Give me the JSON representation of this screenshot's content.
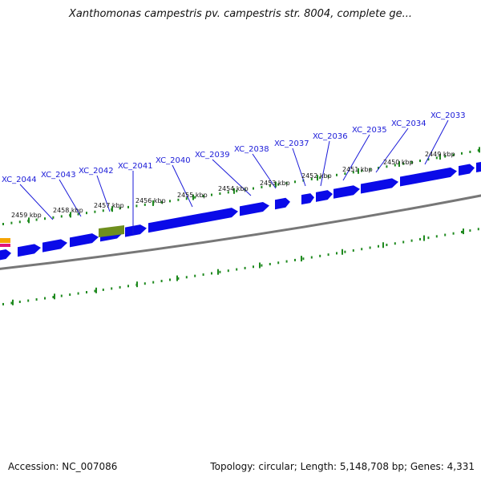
{
  "title": "Xanthomonas campestris pv. campestris str. 8004, complete ge...",
  "footer": {
    "accession": "Accession: NC_007086",
    "summary": "Topology: circular; Length: 5,148,708 bp; Genes: 4,331"
  },
  "colors": {
    "gene": "#0a0ae8",
    "gene_highlight": "#6f8f1e",
    "ticks": "#1f8a1f",
    "backbone": "#777777",
    "label": "#1a1ad8",
    "edge_orange": "#f5a300",
    "edge_pink": "#e0157a"
  },
  "position_labels": [
    "2459 kbp",
    "2458 kbp",
    "2457 kbp",
    "2456 kbp",
    "2455 kbp",
    "2454 kbp",
    "2453 kbp",
    "2452 kbp",
    "2451 kbp",
    "2450 kbp",
    "2449 kbp"
  ],
  "gene_labels": [
    "XC_2044",
    "XC_2043",
    "XC_2042",
    "XC_2041",
    "XC_2040",
    "XC_2039",
    "XC_2038",
    "XC_2037",
    "XC_2036",
    "XC_2035",
    "XC_2034",
    "XC_2033"
  ]
}
